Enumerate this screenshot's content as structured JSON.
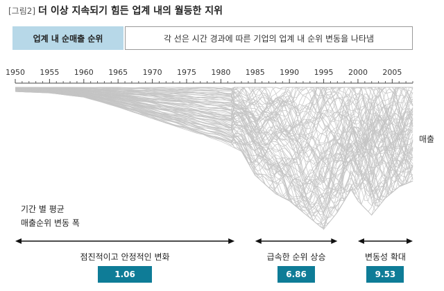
{
  "figure": {
    "tag": "[그림2]",
    "title": "더 이상 지속되기 힘든 업계 내의 월등한 지위"
  },
  "legend": {
    "label": "업계 내 순매출 순위",
    "description": "각 선은 시간 경과에 따른 기업의 업계 내 순위 변동을 나타냄"
  },
  "axis_side_label": "매출",
  "avg_label": {
    "line1": "기간 별 평균",
    "line2": "매출순위 변동 폭"
  },
  "chart_data": {
    "type": "line",
    "title": "",
    "xlabel": "",
    "ylabel": "매출",
    "x_ticks": [
      "1950",
      "1955",
      "1960",
      "1965",
      "1970",
      "1975",
      "1980",
      "1985",
      "1990",
      "1995",
      "2000",
      "2005"
    ],
    "xlim": [
      1950,
      2008
    ],
    "line_color": "#c4c4c4",
    "grid": false,
    "depth_profile": [
      {
        "year": 1950,
        "depth": 0.03
      },
      {
        "year": 1955,
        "depth": 0.04
      },
      {
        "year": 1960,
        "depth": 0.07
      },
      {
        "year": 1965,
        "depth": 0.14
      },
      {
        "year": 1970,
        "depth": 0.22
      },
      {
        "year": 1975,
        "depth": 0.3
      },
      {
        "year": 1980,
        "depth": 0.38
      },
      {
        "year": 1983,
        "depth": 0.45
      },
      {
        "year": 1985,
        "depth": 0.62
      },
      {
        "year": 1988,
        "depth": 0.75
      },
      {
        "year": 1990,
        "depth": 0.8
      },
      {
        "year": 1993,
        "depth": 0.92
      },
      {
        "year": 1995,
        "depth": 1.0
      },
      {
        "year": 1997,
        "depth": 0.88
      },
      {
        "year": 1999,
        "depth": 0.72
      },
      {
        "year": 2000,
        "depth": 0.8
      },
      {
        "year": 2002,
        "depth": 0.9
      },
      {
        "year": 2004,
        "depth": 0.78
      },
      {
        "year": 2006,
        "depth": 0.7
      },
      {
        "year": 2008,
        "depth": 0.66
      }
    ],
    "periods": [
      {
        "label": "점진적이고 안정적인 변화",
        "value": "1.06",
        "from": 1950,
        "to": 1982
      },
      {
        "label": "급속한 순위 상승",
        "value": "6.86",
        "from": 1985,
        "to": 1997
      },
      {
        "label": "변동성 확대",
        "value": "9.53",
        "from": 2000,
        "to": 2008
      }
    ]
  }
}
